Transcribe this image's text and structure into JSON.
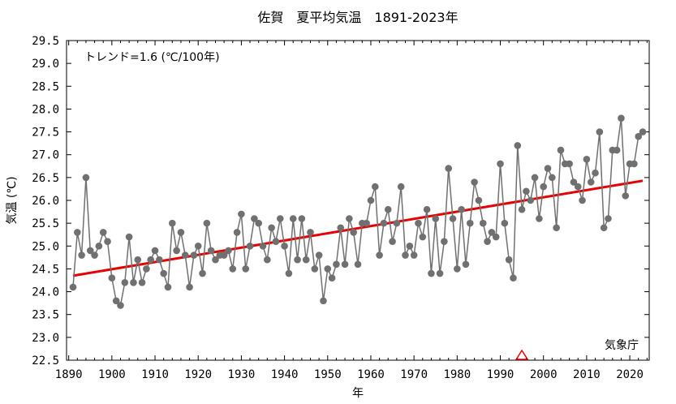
{
  "chart_data": {
    "type": "line",
    "title": "佐賀　夏平均気温　1891-2023年",
    "xlabel": "年",
    "ylabel": "気温 (℃)",
    "trend_label": "トレンド=1.6 (℃/100年)",
    "source_label": "気象庁",
    "xlim": [
      1889.5,
      2024.5
    ],
    "ylim": [
      22.5,
      29.5
    ],
    "x_ticks": [
      1890,
      1900,
      1910,
      1920,
      1930,
      1940,
      1950,
      1960,
      1970,
      1980,
      1990,
      2000,
      2010,
      2020
    ],
    "y_ticks": [
      "22.5",
      "23.0",
      "23.5",
      "24.0",
      "24.5",
      "25.0",
      "25.5",
      "26.0",
      "26.5",
      "27.0",
      "27.5",
      "28.0",
      "28.5",
      "29.0",
      "29.5"
    ],
    "series": [
      {
        "color": "#707070",
        "x_start": 1891,
        "values": [
          24.1,
          25.3,
          24.8,
          26.5,
          24.9,
          24.8,
          25.0,
          25.3,
          25.1,
          24.3,
          23.8,
          23.7,
          24.2,
          25.2,
          24.2,
          24.7,
          24.2,
          24.5,
          24.7,
          24.9,
          24.7,
          24.4,
          24.1,
          25.5,
          24.9,
          25.3,
          24.8,
          24.1,
          24.8,
          25.0,
          24.4,
          25.5,
          24.9,
          24.7,
          24.8,
          24.8,
          24.9,
          24.5,
          25.3,
          25.7,
          24.5,
          25.0,
          25.6,
          25.5,
          25.0,
          24.7,
          25.4,
          25.1,
          25.6,
          25.0,
          24.4,
          25.6,
          24.7,
          25.6,
          24.7,
          25.3,
          24.5,
          24.8,
          23.8,
          24.5,
          24.3,
          24.6,
          25.4,
          24.6,
          25.6,
          25.3,
          24.6,
          25.5,
          25.5,
          26.0,
          26.3,
          24.8,
          25.5,
          25.8,
          25.1,
          25.5,
          26.3,
          24.8,
          25.0,
          24.8,
          25.5,
          25.2,
          25.8,
          24.4,
          25.6,
          24.4,
          25.1,
          26.7,
          25.6,
          24.5,
          25.8,
          24.6,
          25.5,
          26.4,
          26.0,
          25.5,
          25.1,
          25.3,
          25.2,
          26.8,
          25.5,
          24.7,
          24.3,
          27.2,
          25.8,
          26.2,
          26.0,
          26.5,
          25.6,
          26.3,
          26.7,
          26.5,
          25.4,
          27.1,
          26.8,
          26.8,
          26.4,
          26.3,
          26.0,
          26.9,
          26.4,
          26.6,
          27.5,
          25.4,
          25.6,
          27.1,
          27.1,
          27.8,
          26.1,
          26.8,
          26.8,
          27.4,
          27.5
        ]
      }
    ],
    "trend": {
      "color": "#e80000",
      "x": [
        1891,
        2023
      ],
      "y": [
        24.35,
        26.43
      ]
    },
    "marker": {
      "color": "#e80000",
      "x": 1995,
      "shape": "triangle"
    },
    "grid": false
  }
}
